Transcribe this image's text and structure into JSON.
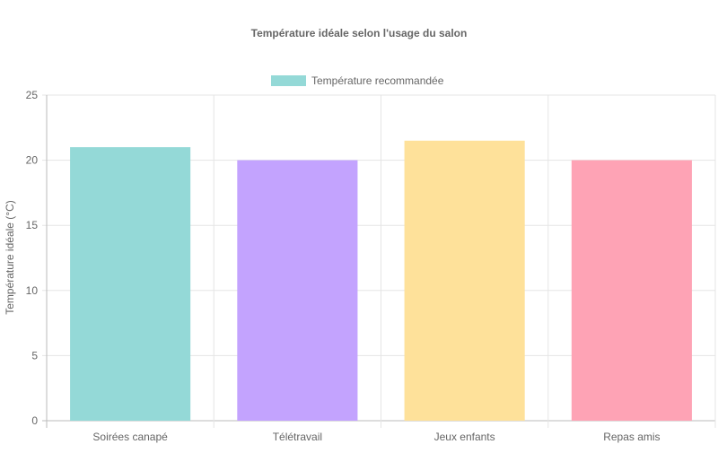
{
  "chart_data": {
    "type": "bar",
    "title": "Température idéale selon l'usage du salon",
    "xlabel": "",
    "ylabel": "Température idéale (°C)",
    "ylim": [
      0,
      25
    ],
    "yticks": [
      0,
      5,
      10,
      15,
      20,
      25
    ],
    "grid": true,
    "legend_position": "top",
    "categories": [
      "Soirées canapé",
      "Télétravail",
      "Jeux enfants",
      "Repas amis"
    ],
    "series": [
      {
        "name": "Température recommandée",
        "values": [
          21,
          20,
          21.5,
          20
        ],
        "colors": [
          "#94d9d7",
          "#c3a3fe",
          "#fee19a",
          "#fea3b5"
        ]
      }
    ]
  }
}
